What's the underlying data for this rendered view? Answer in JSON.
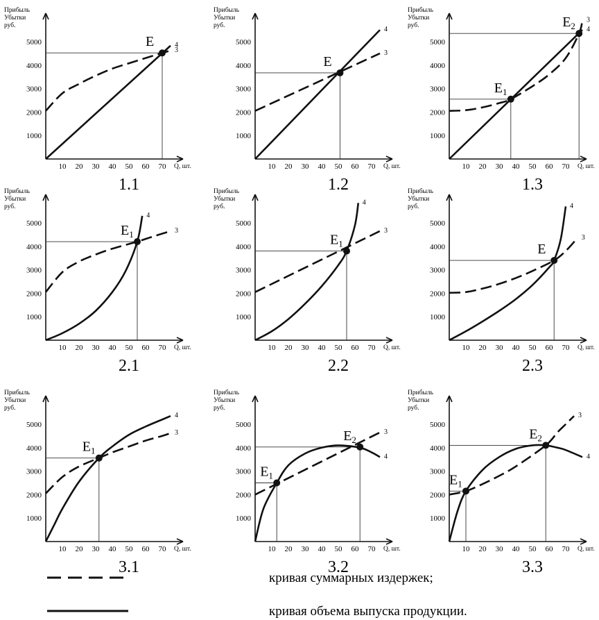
{
  "labels": {
    "y_label_lines": [
      "Прибыль",
      "Убытки",
      "руб."
    ],
    "x_label": "Q, шт.",
    "total_cost_curve_id": "3",
    "output_curve_id": "4"
  },
  "legend": [
    {
      "style": "dashed",
      "text": "кривая суммарных издержек;"
    },
    {
      "style": "solid",
      "text": "кривая объема выпуска продукции."
    }
  ],
  "chart_data": [
    {
      "type": "line",
      "number": "1.1",
      "x_ticks": [
        10,
        20,
        30,
        40,
        50,
        60,
        70
      ],
      "y_ticks": [
        1000,
        2000,
        3000,
        4000,
        5000
      ],
      "xlim": [
        0,
        80
      ],
      "ylim": [
        0,
        6000
      ],
      "series": [
        {
          "name": "3",
          "style": "dashed",
          "x": [
            0,
            10,
            20,
            30,
            40,
            50,
            60,
            70,
            75
          ],
          "y": [
            2050,
            2800,
            3200,
            3550,
            3850,
            4080,
            4300,
            4520,
            4620
          ]
        },
        {
          "name": "4",
          "style": "solid",
          "x": [
            0,
            75
          ],
          "y": [
            0,
            4830
          ]
        }
      ],
      "points": [
        {
          "label": "E",
          "sub": "",
          "x": 70,
          "y": 4520
        }
      ]
    },
    {
      "type": "line",
      "number": "1.2",
      "x_ticks": [
        10,
        20,
        30,
        40,
        50,
        60,
        70
      ],
      "y_ticks": [
        1000,
        2000,
        3000,
        4000,
        5000
      ],
      "xlim": [
        0,
        80
      ],
      "ylim": [
        0,
        6000
      ],
      "series": [
        {
          "name": "3",
          "style": "dashed",
          "x": [
            0,
            75
          ],
          "y": [
            2050,
            4500
          ]
        },
        {
          "name": "4",
          "style": "solid",
          "x": [
            0,
            75
          ],
          "y": [
            0,
            5500
          ]
        }
      ],
      "points": [
        {
          "label": "E",
          "sub": "",
          "x": 51,
          "y": 3670
        }
      ]
    },
    {
      "type": "line",
      "number": "1.3",
      "x_ticks": [
        10,
        20,
        30,
        40,
        50,
        60,
        70
      ],
      "y_ticks": [
        1000,
        2000,
        3000,
        4000,
        5000
      ],
      "xlim": [
        0,
        80
      ],
      "ylim": [
        0,
        6000
      ],
      "series": [
        {
          "name": "3",
          "style": "dashed",
          "x": [
            0,
            10,
            20,
            30,
            37,
            50,
            60,
            70,
            78,
            80
          ],
          "y": [
            2050,
            2080,
            2200,
            2380,
            2550,
            3100,
            3600,
            4300,
            5350,
            5900
          ]
        },
        {
          "name": "4",
          "style": "solid",
          "x": [
            0,
            80
          ],
          "y": [
            0,
            5500
          ]
        }
      ],
      "points": [
        {
          "label": "E",
          "sub": "1",
          "x": 37,
          "y": 2550
        },
        {
          "label": "E",
          "sub": "2",
          "x": 78,
          "y": 5350
        }
      ]
    },
    {
      "type": "line",
      "number": "2.1",
      "x_ticks": [
        10,
        20,
        30,
        40,
        50,
        60,
        70
      ],
      "y_ticks": [
        1000,
        2000,
        3000,
        4000,
        5000
      ],
      "xlim": [
        0,
        80
      ],
      "ylim": [
        0,
        6000
      ],
      "series": [
        {
          "name": "3",
          "style": "dashed",
          "x": [
            0,
            10,
            20,
            30,
            40,
            55,
            65,
            75
          ],
          "y": [
            2050,
            2900,
            3350,
            3650,
            3900,
            4200,
            4430,
            4650
          ]
        },
        {
          "name": "4",
          "style": "solid",
          "x": [
            0,
            10,
            20,
            30,
            40,
            48,
            55,
            58
          ],
          "y": [
            0,
            300,
            700,
            1250,
            2050,
            2950,
            4200,
            5300
          ]
        }
      ],
      "points": [
        {
          "label": "E",
          "sub": "1",
          "x": 55,
          "y": 4200
        }
      ]
    },
    {
      "type": "line",
      "number": "2.2",
      "x_ticks": [
        10,
        20,
        30,
        40,
        50,
        60,
        70
      ],
      "y_ticks": [
        1000,
        2000,
        3000,
        4000,
        5000
      ],
      "xlim": [
        0,
        80
      ],
      "ylim": [
        0,
        6000
      ],
      "series": [
        {
          "name": "3",
          "style": "dashed",
          "x": [
            0,
            75
          ],
          "y": [
            2050,
            4650
          ]
        },
        {
          "name": "4",
          "style": "solid",
          "x": [
            0,
            10,
            20,
            30,
            40,
            50,
            55,
            60,
            62
          ],
          "y": [
            0,
            380,
            900,
            1550,
            2300,
            3200,
            3800,
            4900,
            5850
          ]
        }
      ],
      "points": [
        {
          "label": "E",
          "sub": "1",
          "x": 55,
          "y": 3800
        }
      ]
    },
    {
      "type": "line",
      "number": "2.3",
      "x_ticks": [
        10,
        20,
        30,
        40,
        50,
        60,
        70
      ],
      "y_ticks": [
        1000,
        2000,
        3000,
        4000,
        5000
      ],
      "xlim": [
        0,
        80
      ],
      "ylim": [
        0,
        6000
      ],
      "series": [
        {
          "name": "3",
          "style": "dashed",
          "x": [
            0,
            10,
            20,
            30,
            40,
            50,
            63,
            70,
            77
          ],
          "y": [
            2020,
            2050,
            2200,
            2400,
            2650,
            2950,
            3400,
            3800,
            4350
          ]
        },
        {
          "name": "4",
          "style": "solid",
          "x": [
            0,
            10,
            20,
            30,
            40,
            50,
            60,
            63,
            67,
            70
          ],
          "y": [
            0,
            380,
            800,
            1250,
            1750,
            2350,
            3100,
            3400,
            4300,
            5700
          ]
        }
      ],
      "points": [
        {
          "label": "E",
          "sub": "",
          "x": 63,
          "y": 3400
        }
      ]
    },
    {
      "type": "line",
      "number": "3.1",
      "x_ticks": [
        10,
        20,
        30,
        40,
        50,
        60,
        70
      ],
      "y_ticks": [
        1000,
        2000,
        3000,
        4000,
        5000
      ],
      "xlim": [
        0,
        80
      ],
      "ylim": [
        0,
        6000
      ],
      "series": [
        {
          "name": "3",
          "style": "dashed",
          "x": [
            0,
            10,
            20,
            32,
            40,
            50,
            60,
            70,
            75
          ],
          "y": [
            2050,
            2750,
            3200,
            3560,
            3800,
            4050,
            4300,
            4500,
            4620
          ]
        },
        {
          "name": "4",
          "style": "solid",
          "x": [
            0,
            5,
            10,
            20,
            32,
            40,
            50,
            60,
            70,
            75
          ],
          "y": [
            0,
            700,
            1400,
            2550,
            3560,
            4050,
            4550,
            4900,
            5200,
            5350
          ]
        }
      ],
      "points": [
        {
          "label": "E",
          "sub": "1",
          "x": 32,
          "y": 3560
        }
      ]
    },
    {
      "type": "line",
      "number": "3.2",
      "x_ticks": [
        10,
        20,
        30,
        40,
        50,
        60,
        70
      ],
      "y_ticks": [
        1000,
        2000,
        3000,
        4000,
        5000
      ],
      "xlim": [
        0,
        80
      ],
      "ylim": [
        0,
        6000
      ],
      "series": [
        {
          "name": "3",
          "style": "dashed",
          "x": [
            0,
            75
          ],
          "y": [
            2000,
            4650
          ]
        },
        {
          "name": "4",
          "style": "solid",
          "x": [
            0,
            5,
            13,
            20,
            30,
            40,
            50,
            63,
            70,
            75
          ],
          "y": [
            0,
            1400,
            2500,
            3250,
            3750,
            4000,
            4100,
            4000,
            3800,
            3600
          ]
        }
      ],
      "points": [
        {
          "label": "E",
          "sub": "1",
          "x": 13,
          "y": 2500
        },
        {
          "label": "E",
          "sub": "2",
          "x": 63,
          "y": 4030
        }
      ]
    },
    {
      "type": "line",
      "number": "3.3",
      "x_ticks": [
        10,
        20,
        30,
        40,
        50,
        60,
        70
      ],
      "y_ticks": [
        1000,
        2000,
        3000,
        4000,
        5000
      ],
      "xlim": [
        0,
        80
      ],
      "ylim": [
        0,
        6000
      ],
      "series": [
        {
          "name": "3",
          "style": "dashed",
          "x": [
            0,
            10,
            20,
            30,
            40,
            58,
            65,
            70,
            75
          ],
          "y": [
            2000,
            2150,
            2450,
            2800,
            3200,
            4100,
            4650,
            5000,
            5350
          ]
        },
        {
          "name": "4",
          "style": "solid",
          "x": [
            0,
            5,
            10,
            20,
            30,
            40,
            50,
            58,
            65,
            70,
            80
          ],
          "y": [
            0,
            1300,
            2150,
            3050,
            3600,
            3950,
            4100,
            4100,
            4000,
            3900,
            3600
          ]
        }
      ],
      "points": [
        {
          "label": "E",
          "sub": "1",
          "x": 10,
          "y": 2150
        },
        {
          "label": "E",
          "sub": "2",
          "x": 58,
          "y": 4100
        }
      ]
    }
  ]
}
